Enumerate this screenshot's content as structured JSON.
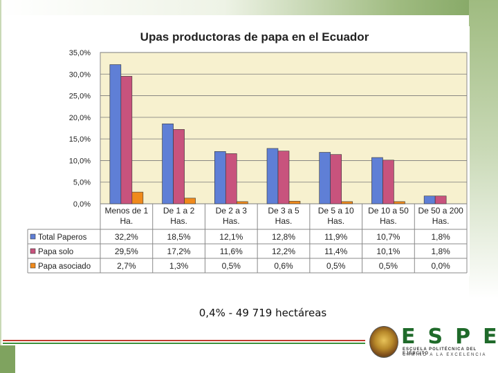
{
  "slide": {
    "caption": "0,4% - 49 719 hectáreas",
    "logo": {
      "text": "ESPE",
      "subtitle_1": "ESCUELA POLITÉCNICA DEL EJÉRCITO",
      "subtitle_2": "CAMINO A LA EXCELENCIA"
    }
  },
  "colors": {
    "plot_bg": "#f7f1cf",
    "blue": "#5f7fd6",
    "pink": "#c8537d",
    "orange": "#f08a1c"
  },
  "chart_data": {
    "type": "bar",
    "title": "Upas productoras de papa en el Ecuador",
    "categories": [
      "Menos de 1 Ha.",
      "De 1 a 2 Has.",
      "De 2 a 3 Has.",
      "De 3 a 5 Has.",
      "De 5 a 10 Has.",
      "De 10 a 50 Has.",
      "De 50 a 200 Has."
    ],
    "category_lines": [
      [
        "Menos de 1",
        "Ha."
      ],
      [
        "De 1 a 2",
        "Has."
      ],
      [
        "De 2 a 3",
        "Has."
      ],
      [
        "De 3 a 5",
        "Has."
      ],
      [
        "De 5 a 10",
        "Has."
      ],
      [
        "De 10 a 50",
        "Has."
      ],
      [
        "De 50 a 200",
        "Has."
      ]
    ],
    "series": [
      {
        "name": "Total Paperos",
        "values": [
          32.2,
          18.5,
          12.1,
          12.8,
          11.9,
          10.7,
          1.8
        ],
        "labels": [
          "32,2%",
          "18,5%",
          "12,1%",
          "12,8%",
          "11,9%",
          "10,7%",
          "1,8%"
        ],
        "color": "#5f7fd6"
      },
      {
        "name": "Papa solo",
        "values": [
          29.5,
          17.2,
          11.6,
          12.2,
          11.4,
          10.1,
          1.8
        ],
        "labels": [
          "29,5%",
          "17,2%",
          "11,6%",
          "12,2%",
          "11,4%",
          "10,1%",
          "1,8%"
        ],
        "color": "#c8537d"
      },
      {
        "name": "Papa asociado",
        "values": [
          2.7,
          1.3,
          0.5,
          0.6,
          0.5,
          0.5,
          0.0
        ],
        "labels": [
          "2,7%",
          "1,3%",
          "0,5%",
          "0,6%",
          "0,5%",
          "0,5%",
          "0,0%"
        ],
        "color": "#f08a1c"
      }
    ],
    "ylim": [
      0,
      35
    ],
    "yticks": [
      "0,0%",
      "5,0%",
      "10,0%",
      "15,0%",
      "20,0%",
      "25,0%",
      "30,0%",
      "35,0%"
    ],
    "grid": true,
    "data_table": true
  }
}
